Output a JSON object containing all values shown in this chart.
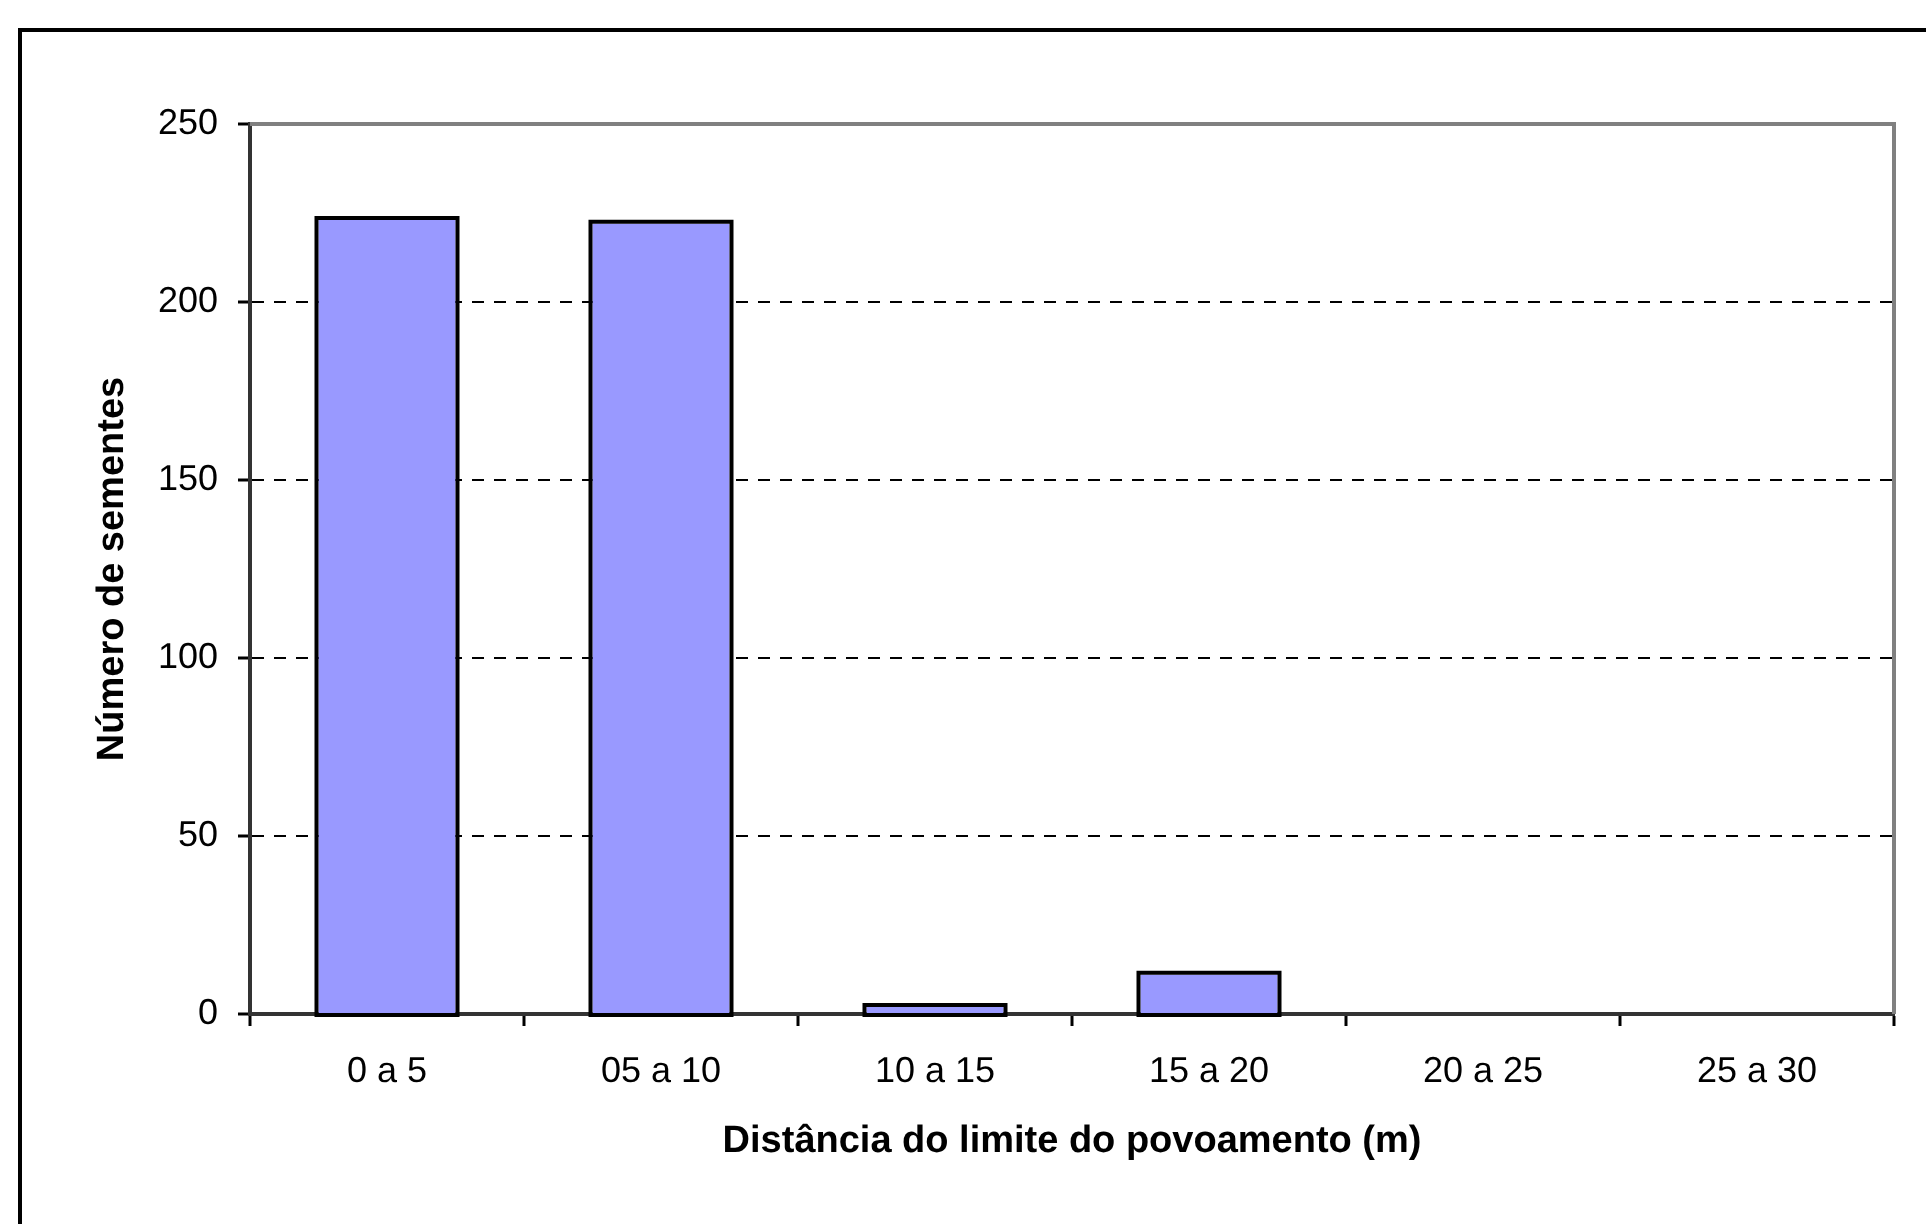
{
  "chart_data": {
    "type": "bar",
    "xlabel": "Distância do limite do povoamento (m)",
    "ylabel": "Número de sementes",
    "categories": [
      "0 a 5",
      "05 a 10",
      "10 a 15",
      "15 a 20",
      "20 a 25",
      "25 a 30"
    ],
    "values": [
      223,
      222,
      2,
      11,
      0,
      0
    ],
    "color": "#9999ff",
    "ylim": [
      0,
      250
    ],
    "yticks": [
      0,
      50,
      100,
      150,
      200,
      250
    ],
    "grid": "y"
  }
}
